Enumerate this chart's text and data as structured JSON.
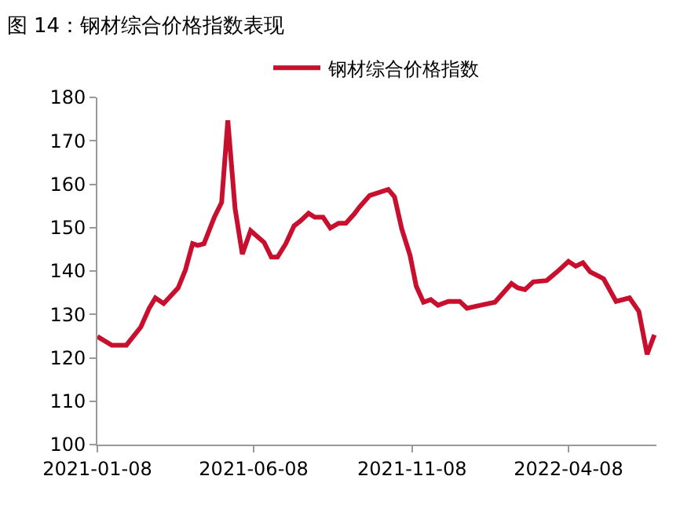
{
  "chart_data": {
    "type": "line",
    "title": "图 14：钢材综合价格指数表现",
    "x": [
      "2021-01-08",
      "2021-01-22",
      "2021-02-05",
      "2021-02-19",
      "2021-02-27",
      "2021-03-05",
      "2021-03-13",
      "2021-03-27",
      "2021-04-03",
      "2021-04-10",
      "2021-04-15",
      "2021-04-21",
      "2021-05-01",
      "2021-05-08",
      "2021-05-14",
      "2021-05-21",
      "2021-05-28",
      "2021-06-05",
      "2021-06-18",
      "2021-06-25",
      "2021-07-01",
      "2021-07-09",
      "2021-07-17",
      "2021-07-23",
      "2021-07-31",
      "2021-08-06",
      "2021-08-14",
      "2021-08-21",
      "2021-08-29",
      "2021-09-05",
      "2021-09-13",
      "2021-09-18",
      "2021-09-28",
      "2021-10-16",
      "2021-10-22",
      "2021-10-29",
      "2021-11-06",
      "2021-11-12",
      "2021-11-19",
      "2021-11-26",
      "2021-12-03",
      "2021-12-13",
      "2021-12-24",
      "2021-12-31",
      "2022-01-13",
      "2022-01-27",
      "2022-02-12",
      "2022-02-18",
      "2022-02-25",
      "2022-03-05",
      "2022-03-18",
      "2022-03-28",
      "2022-04-08",
      "2022-04-15",
      "2022-04-22",
      "2022-04-29",
      "2022-05-12",
      "2022-05-24",
      "2022-06-06",
      "2022-06-15",
      "2022-06-23",
      "2022-06-30"
    ],
    "series": [
      {
        "name": "钢材综合价格指数",
        "color": "#c8102e",
        "values": [
          124.9,
          122.9,
          122.9,
          127.1,
          131.4,
          133.8,
          132.5,
          136.1,
          140.2,
          146.3,
          145.9,
          146.3,
          152.4,
          155.8,
          174.7,
          154.4,
          143.9,
          149.3,
          146.6,
          143.2,
          143.2,
          146.3,
          150.4,
          151.5,
          153.3,
          152.4,
          152.4,
          149.9,
          151.0,
          151.0,
          153.1,
          154.7,
          157.4,
          158.8,
          157.1,
          149.7,
          143.6,
          136.5,
          132.8,
          133.4,
          132.1,
          133.0,
          133.0,
          131.4,
          132.1,
          132.8,
          137.1,
          136.1,
          135.7,
          137.5,
          137.8,
          139.8,
          142.2,
          141.1,
          141.9,
          139.8,
          138.2,
          133.0,
          133.8,
          130.7,
          120.8,
          125.3
        ]
      }
    ],
    "xlim": [
      "2021-01-08",
      "2022-07-02"
    ],
    "xticks": [
      "2021-01-08",
      "2021-06-08",
      "2021-11-08",
      "2022-04-08"
    ],
    "ylim": [
      100,
      180
    ],
    "yticks": [
      100,
      110,
      120,
      130,
      140,
      150,
      160,
      170,
      180
    ],
    "grid": false,
    "legend": "top",
    "marker": "none",
    "line_style": "solid"
  }
}
